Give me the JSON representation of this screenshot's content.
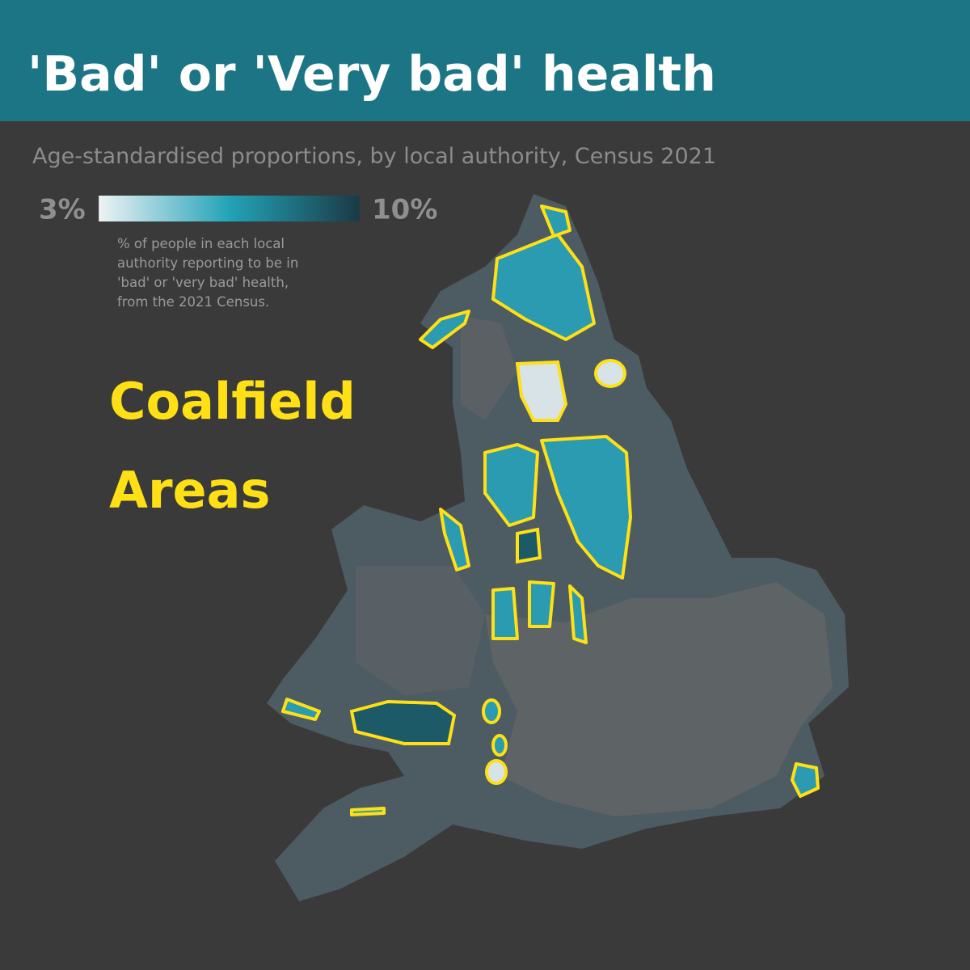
{
  "header": {
    "title": "'Bad' or 'Very bad' health",
    "subtitle": "Age-standardised proportions, by local authority, Census 2021"
  },
  "legend": {
    "min": {
      "value": 3,
      "label": "3%"
    },
    "max": {
      "value": 10,
      "label": "10%"
    },
    "colors": [
      "#eef3f5",
      "#23a3b8",
      "#1a3a45"
    ],
    "description": [
      "% of people in each local",
      "authority reporting to be in",
      "'bad' or 'very bad' health,",
      "from the 2021 Census."
    ]
  },
  "annotation": {
    "lines": [
      "Coalfield",
      "Areas"
    ]
  }
}
